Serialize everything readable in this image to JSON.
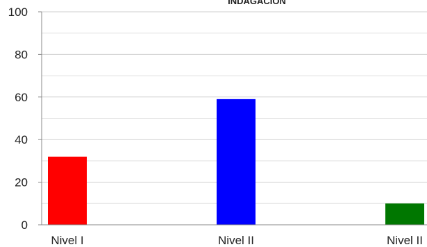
{
  "chart_data": {
    "type": "bar",
    "title": "INDAGACIÓN",
    "categories": [
      "Nivel I",
      "Nivel II",
      "Nivel II"
    ],
    "values": [
      32,
      59,
      10
    ],
    "colors": [
      "#ff0000",
      "#0000ff",
      "#007700"
    ],
    "ylim": [
      0,
      100
    ],
    "yticks": [
      0,
      20,
      40,
      60,
      80,
      100
    ],
    "minor_grid": true,
    "grid": true
  }
}
